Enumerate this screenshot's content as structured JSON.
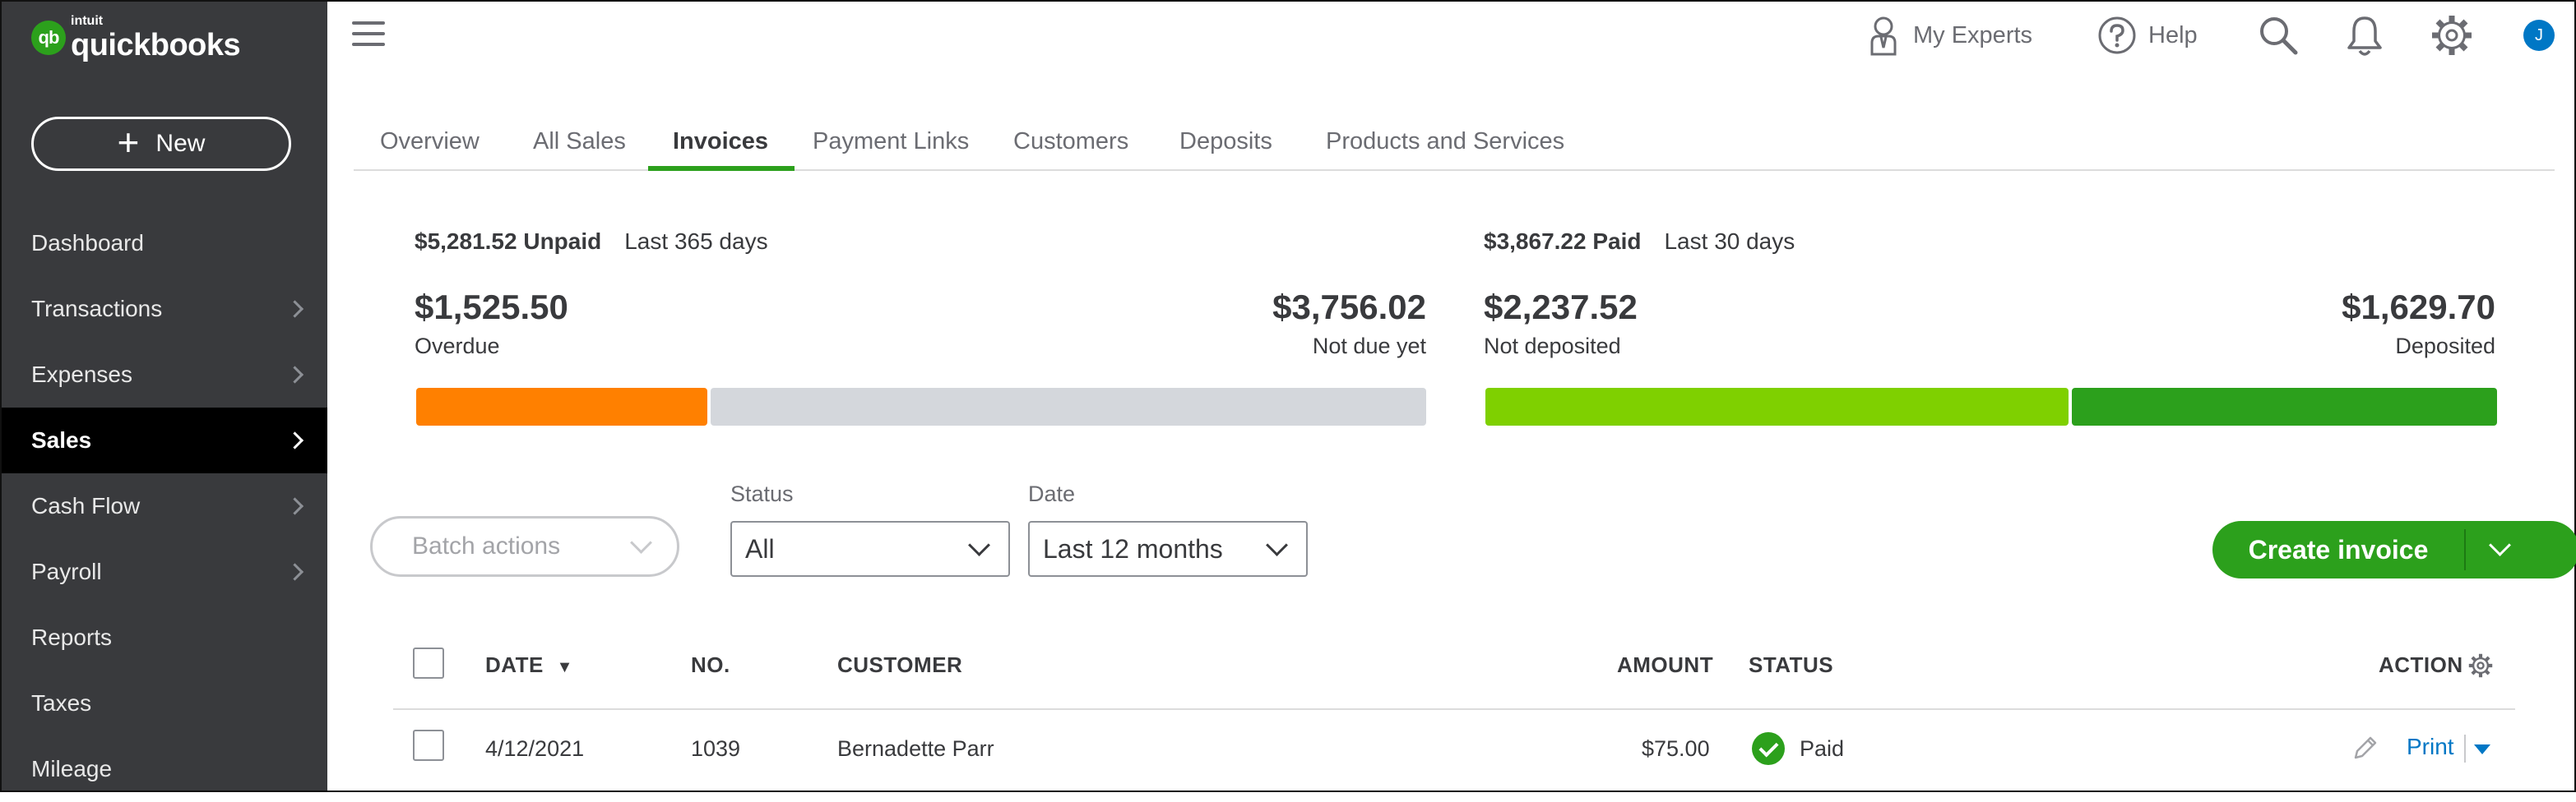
{
  "brand": {
    "logo_mark": "qb",
    "intuit": "intuit",
    "name": "quickbooks"
  },
  "sidebar": {
    "new_label": "New",
    "items": [
      {
        "label": "Dashboard",
        "chevron": false,
        "active": false
      },
      {
        "label": "Transactions",
        "chevron": true,
        "active": false
      },
      {
        "label": "Expenses",
        "chevron": true,
        "active": false
      },
      {
        "label": "Sales",
        "chevron": true,
        "active": true
      },
      {
        "label": "Cash Flow",
        "chevron": true,
        "active": false
      },
      {
        "label": "Payroll",
        "chevron": true,
        "active": false
      },
      {
        "label": "Reports",
        "chevron": false,
        "active": false
      },
      {
        "label": "Taxes",
        "chevron": false,
        "active": false
      },
      {
        "label": "Mileage",
        "chevron": false,
        "active": false
      }
    ]
  },
  "topbar": {
    "my_experts": "My Experts",
    "help": "Help",
    "avatar_initial": "J",
    "icons": [
      "hamburger-icon",
      "expert-person-icon",
      "help-icon",
      "search-icon",
      "bell-icon",
      "gear-icon"
    ]
  },
  "tabs": [
    {
      "label": "Overview"
    },
    {
      "label": "All Sales"
    },
    {
      "label": "Invoices",
      "active": true
    },
    {
      "label": "Payment Links"
    },
    {
      "label": "Customers"
    },
    {
      "label": "Deposits"
    },
    {
      "label": "Products and Services"
    }
  ],
  "unpaid": {
    "total": "$5,281.52 Unpaid",
    "period": "Last 365 days",
    "overdue_amount": "$1,525.50",
    "overdue_label": "Overdue",
    "not_due_amount": "$3,756.02",
    "not_due_label": "Not due yet",
    "overdue_value": 1525.5,
    "not_due_value": 3756.02
  },
  "paid": {
    "total": "$3,867.22 Paid",
    "period": "Last 30 days",
    "not_deposited_amount": "$2,237.52",
    "not_deposited_label": "Not deposited",
    "deposited_amount": "$1,629.70",
    "deposited_label": "Deposited",
    "not_deposited_value": 2237.52,
    "deposited_value": 1629.7
  },
  "colors": {
    "overdue": "#ff8000",
    "not_due": "#d4d7dc",
    "not_deposited": "#7fd000",
    "deposited": "#2ca01c",
    "accent": "#2ca01c",
    "link": "#0077c5"
  },
  "filters": {
    "batch_actions": "Batch actions",
    "status_label": "Status",
    "status_value": "All",
    "date_label": "Date",
    "date_value": "Last 12 months"
  },
  "create_invoice": "Create invoice",
  "table": {
    "columns": {
      "date": "DATE",
      "sort": "▼",
      "no": "NO.",
      "customer": "CUSTOMER",
      "amount": "AMOUNT",
      "status": "STATUS",
      "action": "ACTION"
    },
    "rows": [
      {
        "date": "4/12/2021",
        "no": "1039",
        "customer": "Bernadette Parr",
        "amount": "$75.00",
        "status": "Paid",
        "action": "Print"
      }
    ]
  }
}
